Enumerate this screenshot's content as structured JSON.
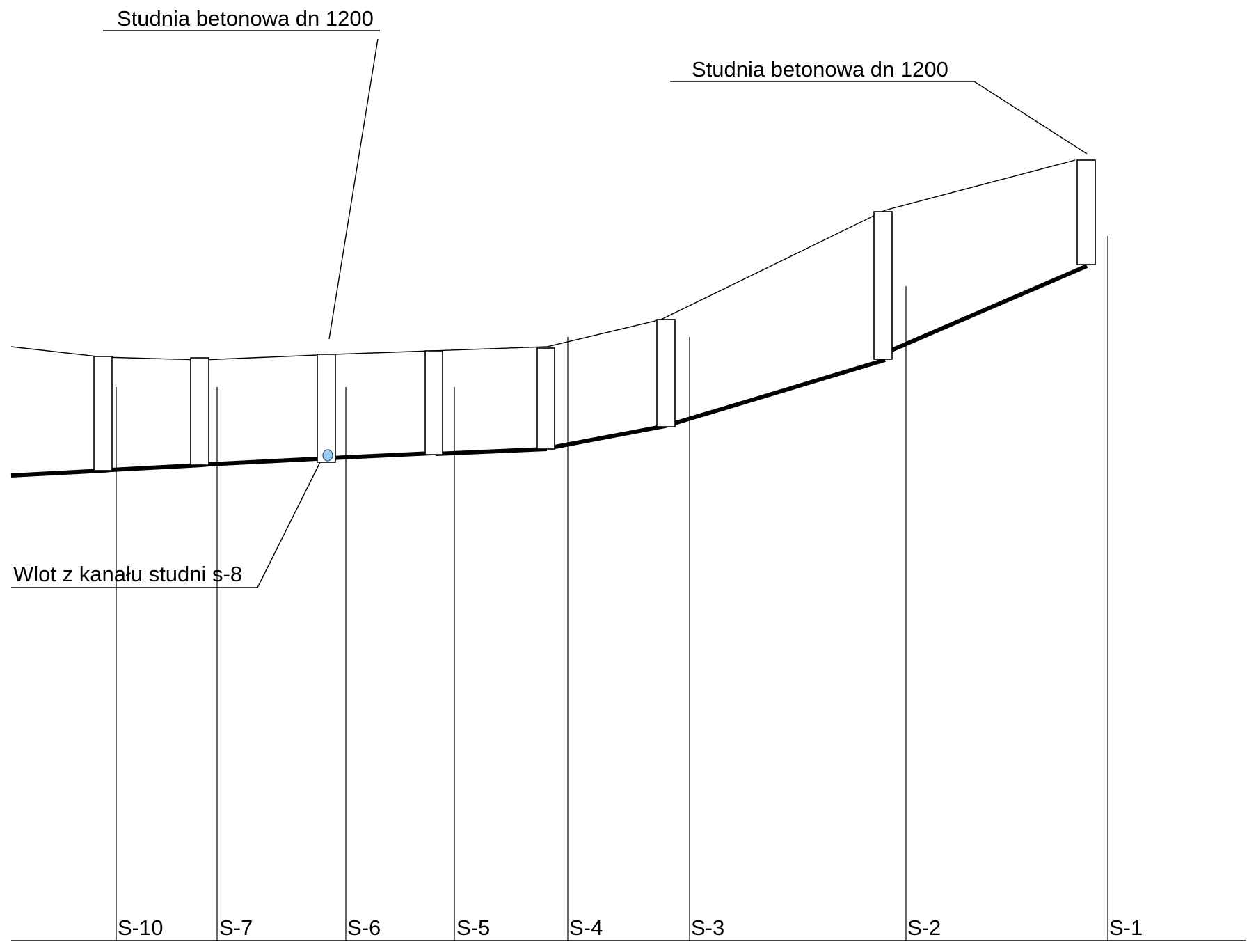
{
  "callouts": {
    "well_left": "Studnia betonowa  dn 1200",
    "well_right": "Studnia  betonowa  dn 1200",
    "inlet": "Wlot  z kanału studni s-8"
  },
  "stations": [
    {
      "id": "s10",
      "label": "S-10"
    },
    {
      "id": "s7",
      "label": "S-7"
    },
    {
      "id": "s6",
      "label": "S-6"
    },
    {
      "id": "s5",
      "label": "S-5"
    },
    {
      "id": "s4",
      "label": "S-4"
    },
    {
      "id": "s3",
      "label": "S-3"
    },
    {
      "id": "s2",
      "label": "S-2"
    },
    {
      "id": "s1",
      "label": "S-1"
    }
  ],
  "colors": {
    "line": "#000000",
    "inlet_fill": "#99ccf0",
    "background": "#ffffff"
  }
}
